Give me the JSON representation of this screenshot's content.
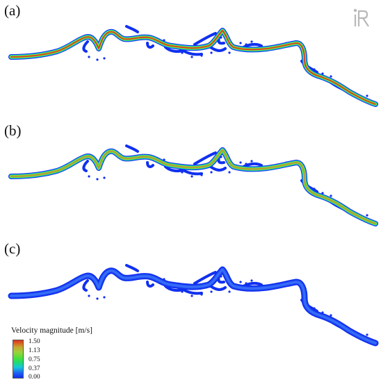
{
  "panels": [
    {
      "label": "(a)",
      "scale": "high"
    },
    {
      "label": "(b)",
      "scale": "medium"
    },
    {
      "label": "(c)",
      "scale": "low"
    }
  ],
  "legend": {
    "title": "Velocity magnitude [m/s]",
    "ticks": [
      "1.50",
      "1.13",
      "0.75",
      "0.37",
      "0.00"
    ],
    "colors": [
      "#e0301e",
      "#9ad23a",
      "#4fe03a",
      "#14c8d8",
      "#1030f0"
    ]
  },
  "logo": {
    "icon": "iric-logo-icon"
  }
}
